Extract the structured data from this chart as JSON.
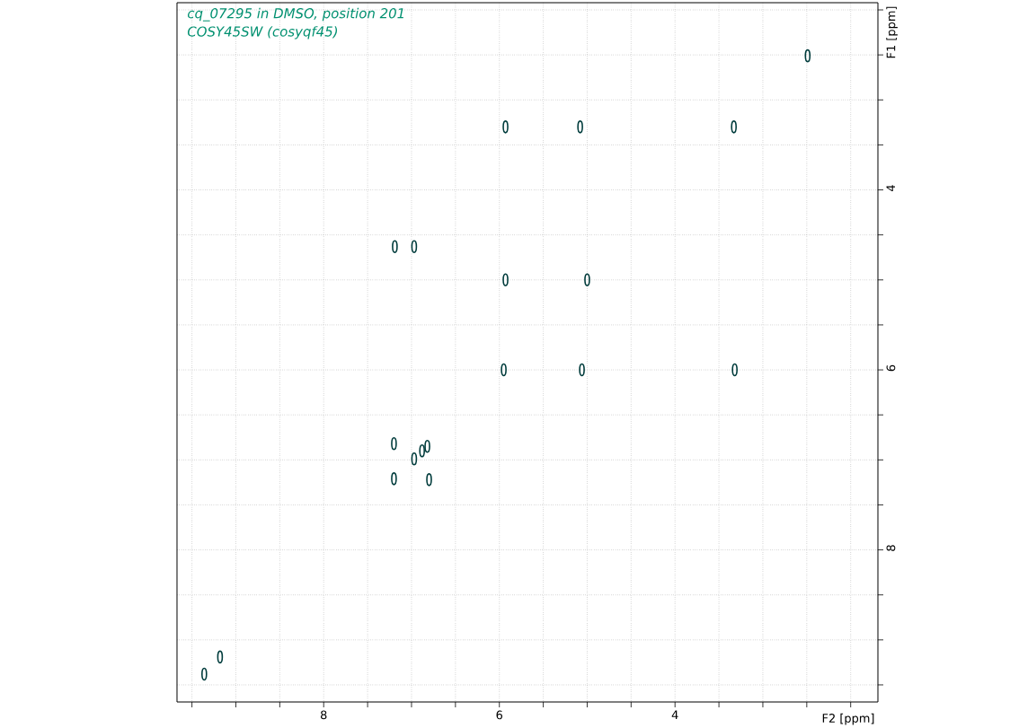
{
  "chart_data": {
    "type": "scatter",
    "annotations": [
      "cq_07295 in DMSO, position 201",
      "COSY45SW (cosyqf45)"
    ],
    "xlabel": "F2 [ppm]",
    "ylabel": "F1 [ppm]",
    "x": [
      2.49,
      5.93,
      5.08,
      3.33,
      7.19,
      6.97,
      5.93,
      5.0,
      5.95,
      5.06,
      3.32,
      7.2,
      7.2,
      6.97,
      6.88,
      6.82,
      6.8,
      9.36,
      9.18
    ],
    "values": [
      2.51,
      3.3,
      3.3,
      3.3,
      4.63,
      4.63,
      5.0,
      5.0,
      6.0,
      6.0,
      6.0,
      7.21,
      6.82,
      6.99,
      6.9,
      6.85,
      7.22,
      9.38,
      9.19
    ],
    "color": "#003c3c",
    "marker": "circle",
    "grid": true,
    "xlim": [
      9.67,
      1.69
    ],
    "ylim": [
      9.69,
      1.92
    ],
    "xticks": [
      {
        "value": 9.5,
        "label": null
      },
      {
        "value": 9,
        "label": null
      },
      {
        "value": 8.5,
        "label": null
      },
      8,
      {
        "value": 7.5,
        "label": null
      },
      {
        "value": 7,
        "label": null
      },
      {
        "value": 6.5,
        "label": null
      },
      6,
      {
        "value": 5.5,
        "label": null
      },
      {
        "value": 5,
        "label": null
      },
      {
        "value": 4.5,
        "label": null
      },
      4,
      {
        "value": 3.5,
        "label": null
      },
      {
        "value": 3,
        "label": null
      },
      {
        "value": 2.5,
        "label": null
      },
      {
        "value": 2,
        "label": null
      }
    ],
    "yticks": [
      {
        "value": 2,
        "label": null
      },
      {
        "value": 2.5,
        "label": null
      },
      {
        "value": 3,
        "label": null
      },
      {
        "value": 3.5,
        "label": null
      },
      4,
      {
        "value": 4.5,
        "label": null
      },
      {
        "value": 5,
        "label": null
      },
      {
        "value": 5.5,
        "label": null
      },
      6,
      {
        "value": 6.5,
        "label": null
      },
      {
        "value": 7,
        "label": null
      },
      {
        "value": 7.5,
        "label": null
      },
      8,
      {
        "value": 8.5,
        "label": null
      },
      {
        "value": 9,
        "label": null
      },
      {
        "value": 9.5,
        "label": null
      }
    ]
  }
}
